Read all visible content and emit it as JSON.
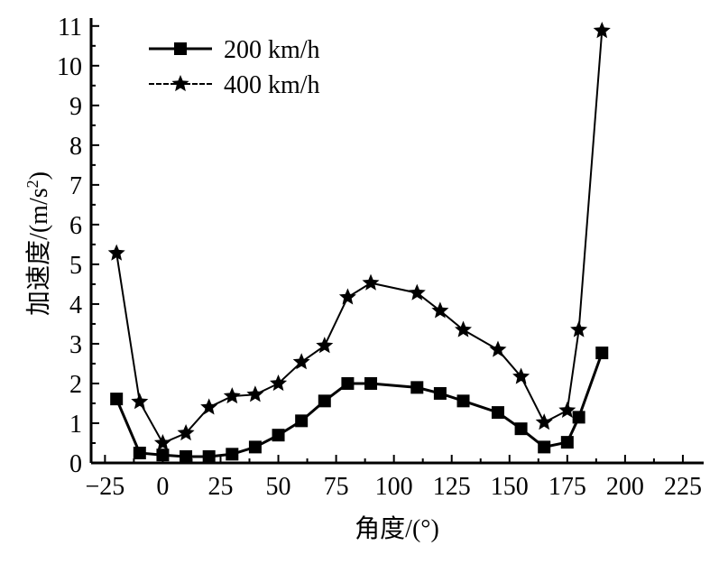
{
  "chart_data": {
    "type": "line",
    "title": "",
    "xlabel": "角度/(°)",
    "ylabel": "加速度/(m/s²)",
    "ylabel_parts": {
      "main": "加速度/(m/s",
      "sup": "2",
      "end": ")"
    },
    "xlim": [
      -31,
      234
    ],
    "ylim": [
      0,
      11.2
    ],
    "xticks": [
      -25,
      0,
      25,
      50,
      75,
      100,
      125,
      150,
      175,
      200,
      225
    ],
    "xtick_labels": [
      "−25",
      "0",
      "25",
      "50",
      "75",
      "100",
      "125",
      "150",
      "175",
      "200",
      "225"
    ],
    "yticks": [
      0,
      1,
      2,
      3,
      4,
      5,
      6,
      7,
      8,
      9,
      10,
      11
    ],
    "ytick_labels": [
      "0",
      "1",
      "2",
      "3",
      "4",
      "5",
      "6",
      "7",
      "8",
      "9",
      "10",
      "11"
    ],
    "grid": false,
    "legend_position": "top-left",
    "series": [
      {
        "name": "200 km/h",
        "marker": "square",
        "x": [
          -20,
          -10,
          0,
          10,
          20,
          30,
          40,
          50,
          60,
          70,
          80,
          90,
          110,
          120,
          130,
          145,
          155,
          165,
          175,
          180,
          190
        ],
        "values": [
          1.61,
          0.25,
          0.2,
          0.16,
          0.16,
          0.22,
          0.4,
          0.7,
          1.06,
          1.56,
          2.0,
          2.0,
          1.9,
          1.75,
          1.56,
          1.27,
          0.86,
          0.4,
          0.52,
          1.15,
          2.77
        ]
      },
      {
        "name": "400 km/h",
        "marker": "star",
        "x": [
          -20,
          -10,
          0,
          10,
          20,
          30,
          40,
          50,
          60,
          70,
          80,
          90,
          110,
          120,
          130,
          145,
          155,
          165,
          175,
          180,
          190
        ],
        "values": [
          5.28,
          1.54,
          0.5,
          0.75,
          1.4,
          1.68,
          1.72,
          2.0,
          2.54,
          2.95,
          4.17,
          4.53,
          4.28,
          3.83,
          3.35,
          2.85,
          2.17,
          1.02,
          1.32,
          3.35,
          10.88
        ]
      }
    ]
  }
}
